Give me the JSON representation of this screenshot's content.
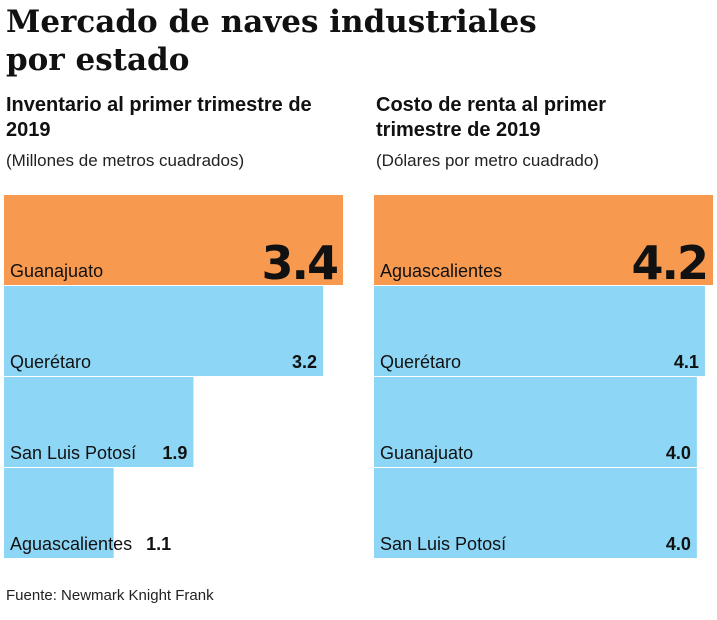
{
  "title": "Mercado de naves industriales por estado",
  "source": "Fuente: Newmark Knight Frank",
  "chart_data": [
    {
      "type": "bar",
      "title": "Inventario al primer trimestre de 2019",
      "subtitle": "(Millones de metros cuadrados)",
      "categories": [
        "Guanajuato",
        "Querétaro",
        "San Luis Potosí",
        "Aguascalientes"
      ],
      "values": [
        3.4,
        3.2,
        1.9,
        1.1
      ],
      "color": "#8dd6f6",
      "highlight_color": "#f7994f"
    },
    {
      "type": "bar",
      "title": "Costo de renta al primer trimestre de 2019",
      "subtitle": "(Dólares por metro cuadrado)",
      "categories": [
        "Aguascalientes",
        "Querétaro",
        "Guanajuato",
        "San Luis Potosí"
      ],
      "values": [
        4.2,
        4.1,
        4.0,
        4.0
      ],
      "value_labels": [
        "4.2",
        "4.1",
        "4.0",
        "4.0"
      ],
      "color": "#8dd6f6",
      "highlight_color": "#f7994f"
    }
  ]
}
